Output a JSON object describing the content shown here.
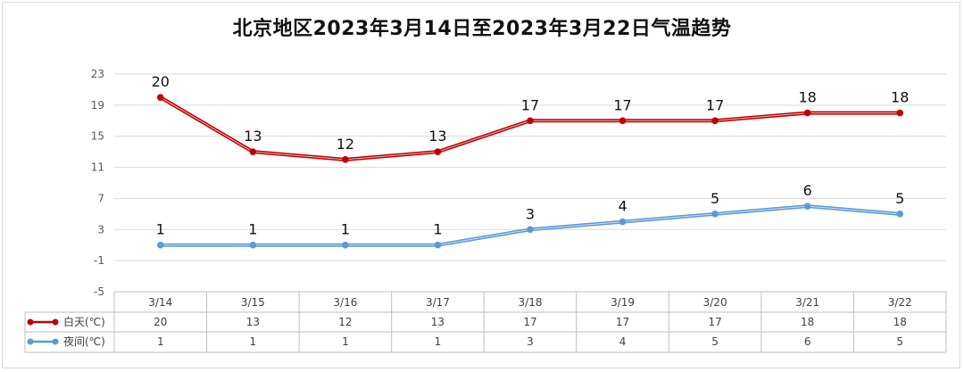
{
  "chart_data": {
    "type": "line",
    "title": "北京地区2023年3月14日至2023年3月22日气温趋势",
    "categories": [
      "3/14",
      "3/15",
      "3/16",
      "3/17",
      "3/18",
      "3/19",
      "3/20",
      "3/21",
      "3/22"
    ],
    "yticks": [
      23,
      19,
      15,
      11,
      7,
      3,
      -1,
      -5
    ],
    "ylim": [
      -5,
      23
    ],
    "grid": true,
    "legend_placement": "data-table",
    "series": [
      {
        "name": "白天(℃)",
        "values": [
          20,
          13,
          12,
          13,
          17,
          17,
          17,
          18,
          18
        ],
        "color": "#c00000"
      },
      {
        "name": "夜间(℃)",
        "values": [
          1,
          1,
          1,
          1,
          3,
          4,
          5,
          6,
          5
        ],
        "color": "#5b9bd5"
      }
    ]
  }
}
